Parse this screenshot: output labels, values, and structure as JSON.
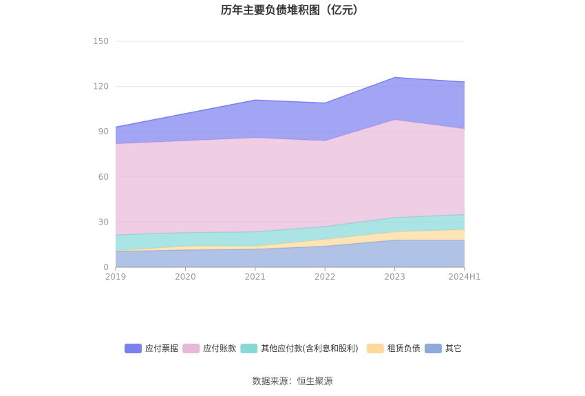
{
  "chart_data": {
    "type": "area",
    "stacked": true,
    "title": "历年主要负债堆积图（亿元）",
    "categories": [
      "2019",
      "2020",
      "2021",
      "2022",
      "2023",
      "2024H1"
    ],
    "ylim": [
      0,
      150
    ],
    "yticks": [
      0,
      30,
      60,
      90,
      120,
      150
    ],
    "grid": true,
    "legend_position": "bottom",
    "series": [
      {
        "name": "其它",
        "color": "#8eaadb",
        "values": [
          10.5,
          11.5,
          12,
          14,
          18,
          18
        ]
      },
      {
        "name": "租赁负债",
        "color": "#ffd99a",
        "values": [
          0.5,
          2.5,
          2,
          4.5,
          5.5,
          7
        ]
      },
      {
        "name": "其他应付款(含利息和股利)",
        "color": "#88d8d8",
        "values": [
          10.5,
          9,
          9.5,
          8.5,
          9.5,
          10
        ]
      },
      {
        "name": "应付账款",
        "color": "#e8b8d8",
        "values": [
          60.5,
          61,
          62.5,
          57,
          65,
          57
        ]
      },
      {
        "name": "应付票据",
        "color": "#7b7ff0",
        "values": [
          11,
          18,
          25,
          25,
          28,
          31
        ]
      }
    ],
    "legend_order": [
      "应付票据",
      "应付账款",
      "其他应付款(含利息和股利)",
      "租赁负债",
      "其它"
    ]
  },
  "source_text": "数据来源：恒生聚源"
}
